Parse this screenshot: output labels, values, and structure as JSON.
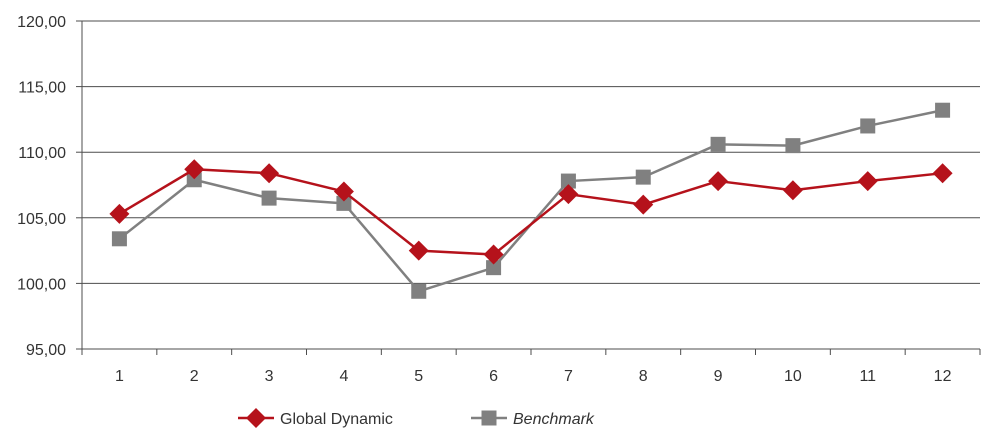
{
  "chart_data": {
    "type": "line",
    "title": "",
    "xlabel": "",
    "ylabel": "",
    "categories": [
      "1",
      "2",
      "3",
      "4",
      "5",
      "6",
      "7",
      "8",
      "9",
      "10",
      "11",
      "12"
    ],
    "ylim": [
      95,
      120
    ],
    "yticks": [
      95,
      100,
      105,
      110,
      115,
      120
    ],
    "ytick_labels": [
      "95,00",
      "100,00",
      "105,00",
      "110,00",
      "115,00",
      "120,00"
    ],
    "grid": "horizontal",
    "legend_position": "bottom",
    "series": [
      {
        "name": "Global Dynamic",
        "marker": "diamond",
        "color": "#b5121b",
        "italic": false,
        "values": [
          105.3,
          108.7,
          108.4,
          107.0,
          102.5,
          102.2,
          106.8,
          106.0,
          107.8,
          107.1,
          107.8,
          108.4
        ]
      },
      {
        "name": "Benchmark",
        "marker": "square",
        "color": "#808080",
        "italic": true,
        "values": [
          103.4,
          107.9,
          106.5,
          106.1,
          99.4,
          101.2,
          107.8,
          108.1,
          110.6,
          110.5,
          112.0,
          113.2
        ]
      }
    ]
  }
}
